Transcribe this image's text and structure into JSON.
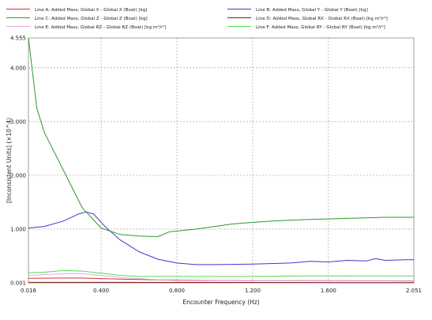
{
  "chart_data": {
    "type": "line",
    "xlabel": "Encounter Frequency (Hz)",
    "ylabel": "[Inconsistent Units] (×10^4)",
    "xlim": [
      0.016,
      2.051
    ],
    "ylim": [
      0.001,
      4.555
    ],
    "x_ticks": [
      "0.016",
      "0.400",
      "0.800",
      "1.200",
      "1.600",
      "2.051"
    ],
    "y_ticks": [
      "0.001",
      "1.000",
      "2.000",
      "3.000",
      "4.000",
      "4.555"
    ],
    "grid": true,
    "legend_position": "top",
    "series": [
      {
        "name": "Line A: Added Mass, Global X - Global X (Boat) [kg]",
        "color": "#d93030",
        "points": [
          [
            0.016,
            0.085
          ],
          [
            0.2,
            0.09
          ],
          [
            0.3,
            0.09
          ],
          [
            0.5,
            0.07
          ],
          [
            0.8,
            0.05
          ],
          [
            1.2,
            0.04
          ],
          [
            1.6,
            0.04
          ],
          [
            2.051,
            0.035
          ]
        ]
      },
      {
        "name": "Line B: Added Mass, Global Y - Global Y (Boat) [kg]",
        "color": "#3b3bd0",
        "points": [
          [
            0.016,
            1.02
          ],
          [
            0.1,
            1.05
          ],
          [
            0.2,
            1.15
          ],
          [
            0.28,
            1.28
          ],
          [
            0.32,
            1.32
          ],
          [
            0.36,
            1.28
          ],
          [
            0.42,
            1.05
          ],
          [
            0.5,
            0.8
          ],
          [
            0.6,
            0.58
          ],
          [
            0.7,
            0.44
          ],
          [
            0.8,
            0.37
          ],
          [
            0.9,
            0.34
          ],
          [
            1.0,
            0.34
          ],
          [
            1.2,
            0.35
          ],
          [
            1.4,
            0.37
          ],
          [
            1.5,
            0.4
          ],
          [
            1.6,
            0.39
          ],
          [
            1.7,
            0.42
          ],
          [
            1.8,
            0.41
          ],
          [
            1.85,
            0.45
          ],
          [
            1.9,
            0.42
          ],
          [
            2.0,
            0.43
          ],
          [
            2.051,
            0.43
          ]
        ]
      },
      {
        "name": "Line C: Added Mass, Global Z - Global Z (Boat) [kg]",
        "color": "#2a9a2a",
        "points": [
          [
            0.016,
            4.555
          ],
          [
            0.06,
            3.25
          ],
          [
            0.1,
            2.8
          ],
          [
            0.2,
            2.1
          ],
          [
            0.3,
            1.4
          ],
          [
            0.4,
            1.02
          ],
          [
            0.5,
            0.9
          ],
          [
            0.6,
            0.87
          ],
          [
            0.7,
            0.86
          ],
          [
            0.76,
            0.95
          ],
          [
            0.9,
            1.0
          ],
          [
            1.0,
            1.05
          ],
          [
            1.1,
            1.1
          ],
          [
            1.3,
            1.15
          ],
          [
            1.5,
            1.18
          ],
          [
            1.7,
            1.2
          ],
          [
            1.9,
            1.22
          ],
          [
            2.051,
            1.22
          ]
        ]
      },
      {
        "name": "Line D: Added Mass, Global RX - Global RX (Boat) [kg.m²/r²]",
        "color": "#7a1f1f",
        "points": [
          [
            0.016,
            0.01
          ],
          [
            0.5,
            0.01
          ],
          [
            1.0,
            0.008
          ],
          [
            1.5,
            0.007
          ],
          [
            2.051,
            0.006
          ]
        ]
      },
      {
        "name": "Line E: Added Mass, Global RZ - Global RZ (Boat) [kg.m²/r²]",
        "color": "#e8a8e8",
        "points": [
          [
            0.016,
            0.14
          ],
          [
            0.2,
            0.17
          ],
          [
            0.3,
            0.17
          ],
          [
            0.4,
            0.14
          ],
          [
            0.5,
            0.1
          ],
          [
            0.7,
            0.06
          ],
          [
            1.0,
            0.05
          ],
          [
            1.5,
            0.04
          ],
          [
            2.051,
            0.04
          ]
        ]
      },
      {
        "name": "Line F: Added Mass, Global RY - Global RY (Boat) [kg.m²/r²]",
        "color": "#50e050",
        "points": [
          [
            0.016,
            0.19
          ],
          [
            0.1,
            0.2
          ],
          [
            0.2,
            0.23
          ],
          [
            0.3,
            0.22
          ],
          [
            0.4,
            0.18
          ],
          [
            0.5,
            0.14
          ],
          [
            0.6,
            0.12
          ],
          [
            0.8,
            0.12
          ],
          [
            1.0,
            0.12
          ],
          [
            1.2,
            0.12
          ],
          [
            1.5,
            0.13
          ],
          [
            1.8,
            0.13
          ],
          [
            2.051,
            0.13
          ]
        ]
      }
    ]
  }
}
